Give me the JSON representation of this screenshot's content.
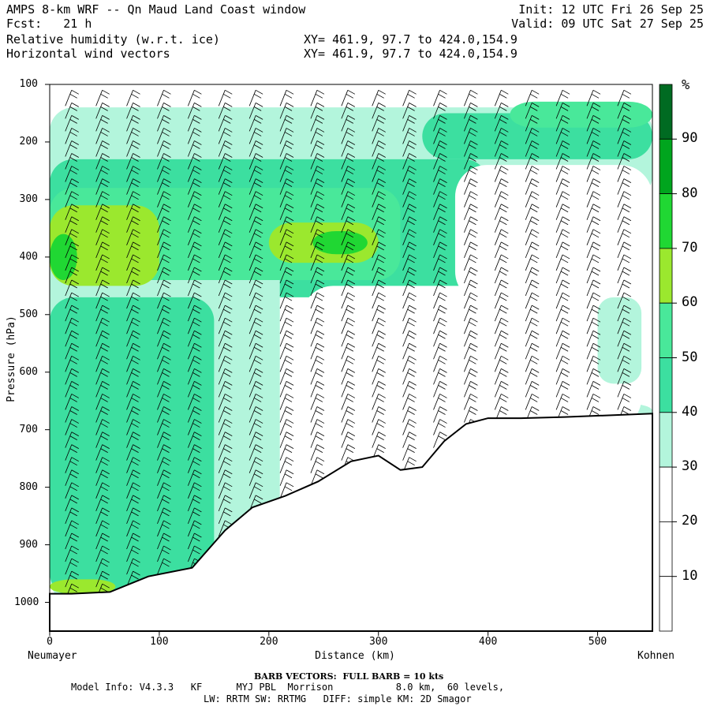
{
  "header": {
    "title": "AMPS 8-km WRF -- Qn Maud Land Coast window",
    "fcst": "Fcst:   21 h",
    "init": "Init: 12 UTC Fri 26 Sep 25",
    "valid": "Valid: 09 UTC Sat 27 Sep 25",
    "field1": "Relative humidity (w.r.t. ice)",
    "field2": "Horizontal wind vectors",
    "xy1": "XY= 461.9, 97.7 to 424.0,154.9",
    "xy2": "XY= 461.9, 97.7 to 424.0,154.9"
  },
  "axes": {
    "ylabel": "Pressure (hPa)",
    "xlabel": "Distance (km)",
    "left_endpoint": "Neumayer",
    "right_endpoint": "Kohnen",
    "y_ticks": [
      "100",
      "200",
      "300",
      "400",
      "500",
      "600",
      "700",
      "800",
      "900",
      "1000"
    ],
    "x_ticks": [
      "0",
      "100",
      "200",
      "300",
      "400",
      "500"
    ]
  },
  "colorbar": {
    "unit": "%",
    "labels": [
      "90",
      "80",
      "70",
      "60",
      "50",
      "40",
      "30",
      "20",
      "10"
    ],
    "colors": [
      "#006b22",
      "#00a51e",
      "#20d733",
      "#9be82e",
      "#49e89a",
      "#3cdfa0",
      "#b3f5dc",
      "#ffffff",
      "#ffffff",
      "#ffffff"
    ]
  },
  "footer": {
    "barb": "BARB VECTORS:  FULL BARB = 10 kts",
    "model1": "Model Info: V4.3.3   KF      MYJ PBL  Morrison           8.0 km,  60 levels,",
    "model2": "LW: RRTM SW: RRTMG   DIFF: simple KM: 2D Smagor"
  },
  "chart_data": {
    "type": "heatmap",
    "title": "Relative humidity (w.r.t. ice)",
    "xlabel": "Distance (km)",
    "ylabel": "Pressure (hPa)",
    "xlim": [
      0,
      550
    ],
    "ylim": [
      1050,
      100
    ],
    "colorbar_levels": [
      10,
      20,
      30,
      40,
      50,
      60,
      70,
      80,
      90
    ],
    "terrain_surface": {
      "x": [
        0,
        20,
        55,
        90,
        130,
        160,
        185,
        215,
        245,
        275,
        300,
        320,
        340,
        360,
        380,
        400,
        430,
        470,
        510,
        550
      ],
      "p": [
        985,
        985,
        982,
        955,
        940,
        875,
        835,
        815,
        790,
        755,
        745,
        770,
        765,
        720,
        690,
        680,
        680,
        678,
        675,
        672
      ]
    },
    "rh_features": [
      {
        "label": "moist upper layer",
        "x_range": [
          0,
          550
        ],
        "p_range": [
          130,
          260
        ],
        "rh": 40
      },
      {
        "label": "moist layer max near 400 hPa",
        "x_range": [
          0,
          300
        ],
        "p_range": [
          320,
          460
        ],
        "rh": 70
      },
      {
        "label": "dry mid-level",
        "x_range": [
          230,
          540
        ],
        "p_range": [
          450,
          700
        ],
        "rh": 20
      },
      {
        "label": "moist low level near coast",
        "x_range": [
          0,
          150
        ],
        "p_range": [
          500,
          980
        ],
        "rh": 45
      }
    ]
  }
}
